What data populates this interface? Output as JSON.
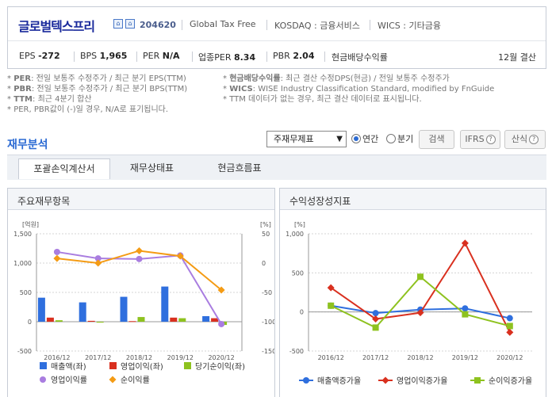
{
  "company": {
    "name": "글로벌텍스프리",
    "code": "204620",
    "english_name": "Global Tax Free",
    "market": "KOSDAQ : 금융서비스",
    "wics": "WICS : 기타금융"
  },
  "stats": {
    "eps_label": "EPS",
    "eps_value": "-272",
    "bps_label": "BPS",
    "bps_value": "1,965",
    "per_label": "PER",
    "per_value": "N/A",
    "ind_per_label": "업종PER",
    "ind_per_value": "8.34",
    "pbr_label": "PBR",
    "pbr_value": "2.04",
    "dividend_label": "현금배당수익률",
    "settlement": "12월 결산"
  },
  "notes": {
    "left": [
      {
        "key": "PER",
        "text": ": 전일 보통주 수정주가 / 최근 분기 EPS(TTM)"
      },
      {
        "key": "PBR",
        "text": ": 전일 보통주 수정주가 / 최근 분기 BPS(TTM)"
      },
      {
        "key": "TTM",
        "text": ": 최근 4분기 합산"
      },
      {
        "key": "",
        "text": "PER, PBR값이 (-)일 경우, N/A로 표기됩니다."
      }
    ],
    "right": [
      {
        "key": "현금배당수익률",
        "text": ": 최근 결산 수정DPS(현금) / 전일 보통주 수정주가"
      },
      {
        "key": "WICS",
        "text": ": WISE Industry Classification Standard, modified by FnGuide"
      },
      {
        "key": "",
        "text": "TTM 데이터가 없는 경우, 최근 결산 데이터로 표시됩니다."
      }
    ]
  },
  "section": {
    "title": "재무분석",
    "select_value": "주재무제표",
    "radio_annual": "연간",
    "radio_quarter": "분기",
    "search_button": "검색",
    "ifrs_button": "IFRS",
    "formula_button": "산식",
    "help_glyph": "?"
  },
  "tabs": [
    "포괄손익계산서",
    "재무상태표",
    "현금흐름표"
  ],
  "panels": {
    "left_title": "주요재무항목",
    "right_title": "수익성장성지표",
    "left_unit_left": "[억원]",
    "left_unit_right": "[%]",
    "right_unit": "[%]"
  },
  "chart_data": [
    {
      "type": "bar",
      "title": "주요재무항목",
      "categories": [
        "2016/12",
        "2017/12",
        "2018/12",
        "2019/12",
        "2020/12"
      ],
      "ylim_left": [
        -500,
        1500
      ],
      "yticks_left": [
        "1,500",
        "1,000",
        "500",
        "0",
        "-500"
      ],
      "ylim_right": [
        -150,
        50
      ],
      "yticks_right": [
        "50",
        "0",
        "-50",
        "-100",
        "-150"
      ],
      "series": [
        {
          "name": "매출액(좌)",
          "axis": "left",
          "kind": "bar",
          "color": "#2f6fde",
          "values": [
            410,
            330,
            425,
            600,
            95
          ]
        },
        {
          "name": "영업이익(좌)",
          "axis": "left",
          "kind": "bar",
          "color": "#d9301f",
          "values": [
            70,
            15,
            10,
            70,
            60
          ]
        },
        {
          "name": "당기순이익(좌)",
          "axis": "left",
          "kind": "bar",
          "color": "#8ec21f",
          "values": [
            25,
            -15,
            80,
            60,
            -55
          ]
        },
        {
          "name": "영업이익률",
          "axis": "right",
          "kind": "line",
          "color": "#a97de0",
          "values": [
            19,
            8,
            7,
            13,
            -104
          ]
        },
        {
          "name": "순이익률",
          "axis": "right",
          "kind": "line",
          "color": "#f49b14",
          "values": [
            8,
            0,
            21,
            12,
            -46
          ]
        }
      ],
      "legend_position": "bottom"
    },
    {
      "type": "line",
      "title": "수익성장성지표",
      "categories": [
        "2016/12",
        "2017/12",
        "2018/12",
        "2019/12",
        "2020/12"
      ],
      "ylim": [
        -500,
        1000
      ],
      "yticks": [
        "1,000",
        "500",
        "0",
        "-500"
      ],
      "series": [
        {
          "name": "매출액증가율",
          "color": "#2f6fde",
          "marker": "circle",
          "values": [
            80,
            -15,
            30,
            45,
            -80
          ]
        },
        {
          "name": "영업이익증가율",
          "color": "#d9301f",
          "marker": "diamond",
          "values": [
            310,
            -90,
            -10,
            880,
            -260
          ]
        },
        {
          "name": "순이익증가율",
          "color": "#8ec21f",
          "marker": "square",
          "values": [
            80,
            -200,
            450,
            -30,
            -180
          ]
        }
      ],
      "legend_position": "bottom"
    }
  ]
}
